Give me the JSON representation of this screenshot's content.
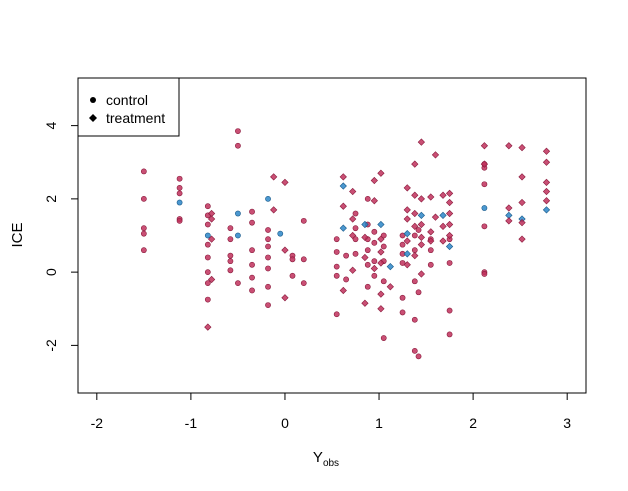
{
  "chart_data": {
    "type": "scatter",
    "title": "",
    "xlabel_main": "Y",
    "xlabel_sub": "obs",
    "ylabel": "ICE",
    "xlim": [
      -2.2,
      3.2
    ],
    "ylim": [
      -3.3,
      5.3
    ],
    "x_ticks": [
      -2,
      -1,
      0,
      1,
      2,
      3
    ],
    "x_tick_labels": [
      "-2",
      "-1",
      "0",
      "1",
      "2",
      "3"
    ],
    "y_ticks": [
      -2,
      0,
      2,
      4
    ],
    "y_tick_labels": [
      "-2",
      "0",
      "2",
      "4"
    ],
    "grid": false,
    "legend_position": "top-left",
    "legend": [
      {
        "label": "control",
        "marker": "circle"
      },
      {
        "label": "treatment",
        "marker": "diamond"
      }
    ],
    "colors": {
      "red": "#c0305c",
      "red_edge": "#8a1a3c",
      "blue": "#2b86c8",
      "blue_edge": "#1a5a8a"
    },
    "series": [
      {
        "name": "control",
        "marker": "circle",
        "points": [
          [
            -1.5,
            2.75,
            "r"
          ],
          [
            -1.5,
            2.0,
            "r"
          ],
          [
            -1.5,
            1.2,
            "r"
          ],
          [
            -1.5,
            1.05,
            "r"
          ],
          [
            -1.5,
            0.6,
            "r"
          ],
          [
            -1.12,
            2.55,
            "r"
          ],
          [
            -1.12,
            2.3,
            "r"
          ],
          [
            -1.12,
            2.15,
            "r"
          ],
          [
            -1.12,
            1.9,
            "b"
          ],
          [
            -1.12,
            1.45,
            "r"
          ],
          [
            -1.12,
            1.4,
            "r"
          ],
          [
            -0.82,
            1.8,
            "r"
          ],
          [
            -0.82,
            1.55,
            "r"
          ],
          [
            -0.82,
            1.3,
            "r"
          ],
          [
            -0.82,
            1.0,
            "b"
          ],
          [
            -0.82,
            0.75,
            "r"
          ],
          [
            -0.82,
            0.4,
            "r"
          ],
          [
            -0.82,
            0.0,
            "r"
          ],
          [
            -0.82,
            -0.3,
            "r"
          ],
          [
            -0.82,
            -0.75,
            "r"
          ],
          [
            -0.58,
            1.2,
            "r"
          ],
          [
            -0.58,
            0.9,
            "r"
          ],
          [
            -0.58,
            0.45,
            "r"
          ],
          [
            -0.58,
            0.3,
            "r"
          ],
          [
            -0.58,
            0.05,
            "r"
          ],
          [
            -0.5,
            3.85,
            "r"
          ],
          [
            -0.5,
            3.45,
            "r"
          ],
          [
            -0.5,
            1.6,
            "b"
          ],
          [
            -0.5,
            1.0,
            "b"
          ],
          [
            -0.5,
            -0.3,
            "r"
          ],
          [
            -0.35,
            1.65,
            "r"
          ],
          [
            -0.35,
            1.35,
            "r"
          ],
          [
            -0.35,
            0.6,
            "r"
          ],
          [
            -0.35,
            0.2,
            "r"
          ],
          [
            -0.35,
            -0.15,
            "r"
          ],
          [
            -0.35,
            -0.5,
            "r"
          ],
          [
            -0.18,
            2.0,
            "b"
          ],
          [
            -0.18,
            1.15,
            "r"
          ],
          [
            -0.18,
            0.9,
            "r"
          ],
          [
            -0.18,
            0.7,
            "r"
          ],
          [
            -0.18,
            0.4,
            "r"
          ],
          [
            -0.18,
            0.1,
            "r"
          ],
          [
            -0.18,
            -0.4,
            "r"
          ],
          [
            -0.18,
            -0.9,
            "r"
          ],
          [
            -0.05,
            1.05,
            "b"
          ],
          [
            0.08,
            0.45,
            "r"
          ],
          [
            0.08,
            0.35,
            "r"
          ],
          [
            0.08,
            -0.1,
            "r"
          ],
          [
            0.2,
            1.4,
            "r"
          ],
          [
            0.2,
            0.35,
            "r"
          ],
          [
            0.2,
            -0.3,
            "r"
          ],
          [
            0.55,
            0.9,
            "r"
          ],
          [
            0.55,
            0.55,
            "r"
          ],
          [
            0.55,
            0.15,
            "r"
          ],
          [
            0.55,
            -0.1,
            "r"
          ],
          [
            0.55,
            -1.15,
            "r"
          ],
          [
            0.65,
            0.45,
            "r"
          ],
          [
            0.65,
            -0.2,
            "r"
          ],
          [
            0.75,
            1.6,
            "r"
          ],
          [
            0.75,
            1.2,
            "r"
          ],
          [
            0.75,
            0.9,
            "r"
          ],
          [
            0.75,
            0.5,
            "r"
          ],
          [
            0.88,
            2.0,
            "r"
          ],
          [
            0.88,
            1.3,
            "r"
          ],
          [
            0.88,
            0.9,
            "r"
          ],
          [
            0.88,
            0.6,
            "r"
          ],
          [
            0.88,
            0.2,
            "r"
          ],
          [
            0.88,
            -0.4,
            "r"
          ],
          [
            0.95,
            1.1,
            "r"
          ],
          [
            0.95,
            0.8,
            "r"
          ],
          [
            0.95,
            0.3,
            "r"
          ],
          [
            0.95,
            -0.1,
            "r"
          ],
          [
            1.05,
            1.0,
            "r"
          ],
          [
            1.05,
            0.7,
            "r"
          ],
          [
            1.05,
            0.3,
            "r"
          ],
          [
            1.05,
            -0.25,
            "r"
          ],
          [
            1.05,
            -1.8,
            "r"
          ],
          [
            1.25,
            1.0,
            "r"
          ],
          [
            1.25,
            0.75,
            "r"
          ],
          [
            1.25,
            0.5,
            "r"
          ],
          [
            1.25,
            0.25,
            "r"
          ],
          [
            1.25,
            -0.7,
            "r"
          ],
          [
            1.25,
            -1.1,
            "r"
          ],
          [
            1.38,
            1.0,
            "r"
          ],
          [
            1.38,
            0.6,
            "r"
          ],
          [
            1.38,
            -0.25,
            "r"
          ],
          [
            1.38,
            -1.3,
            "r"
          ],
          [
            1.38,
            -2.15,
            "r"
          ],
          [
            1.42,
            1.15,
            "r"
          ],
          [
            1.42,
            -0.55,
            "r"
          ],
          [
            1.42,
            -2.3,
            "r"
          ],
          [
            1.55,
            0.9,
            "r"
          ],
          [
            1.55,
            0.6,
            "r"
          ],
          [
            1.55,
            0.2,
            "r"
          ],
          [
            1.75,
            0.9,
            "r"
          ],
          [
            1.75,
            0.25,
            "r"
          ],
          [
            1.75,
            -1.05,
            "r"
          ],
          [
            1.75,
            -1.7,
            "r"
          ],
          [
            2.12,
            2.95,
            "r"
          ],
          [
            2.12,
            2.85,
            "r"
          ],
          [
            2.12,
            2.4,
            "r"
          ],
          [
            2.12,
            1.75,
            "b"
          ],
          [
            2.12,
            1.25,
            "r"
          ],
          [
            2.12,
            0.0,
            "r"
          ],
          [
            2.12,
            -0.05,
            "r"
          ]
        ]
      },
      {
        "name": "treatment",
        "marker": "diamond",
        "points": [
          [
            -0.78,
            1.6,
            "r"
          ],
          [
            -0.78,
            1.45,
            "r"
          ],
          [
            -0.78,
            0.9,
            "r"
          ],
          [
            -0.78,
            -0.2,
            "r"
          ],
          [
            -0.82,
            -1.5,
            "r"
          ],
          [
            -0.12,
            2.6,
            "r"
          ],
          [
            -0.12,
            1.7,
            "r"
          ],
          [
            0.0,
            2.45,
            "r"
          ],
          [
            0.0,
            0.6,
            "r"
          ],
          [
            0.0,
            -0.7,
            "r"
          ],
          [
            0.62,
            2.6,
            "r"
          ],
          [
            0.62,
            2.35,
            "b"
          ],
          [
            0.62,
            1.8,
            "r"
          ],
          [
            0.62,
            1.2,
            "b"
          ],
          [
            0.62,
            -0.5,
            "r"
          ],
          [
            0.72,
            2.2,
            "r"
          ],
          [
            0.72,
            1.45,
            "r"
          ],
          [
            0.72,
            1.0,
            "r"
          ],
          [
            0.72,
            0.05,
            "r"
          ],
          [
            0.85,
            1.3,
            "b"
          ],
          [
            0.85,
            0.95,
            "r"
          ],
          [
            0.85,
            0.4,
            "r"
          ],
          [
            0.85,
            -0.85,
            "r"
          ],
          [
            0.95,
            2.5,
            "r"
          ],
          [
            0.95,
            1.95,
            "r"
          ],
          [
            0.95,
            0.1,
            "r"
          ],
          [
            1.02,
            2.7,
            "r"
          ],
          [
            1.02,
            1.3,
            "b"
          ],
          [
            1.02,
            0.9,
            "r"
          ],
          [
            1.02,
            0.55,
            "r"
          ],
          [
            1.02,
            0.25,
            "r"
          ],
          [
            1.02,
            -0.6,
            "r"
          ],
          [
            1.02,
            -1.0,
            "r"
          ],
          [
            1.12,
            0.15,
            "b"
          ],
          [
            1.12,
            -0.4,
            "r"
          ],
          [
            1.3,
            2.3,
            "r"
          ],
          [
            1.3,
            1.7,
            "r"
          ],
          [
            1.3,
            1.45,
            "r"
          ],
          [
            1.3,
            1.05,
            "b"
          ],
          [
            1.3,
            0.85,
            "r"
          ],
          [
            1.3,
            0.5,
            "b"
          ],
          [
            1.3,
            0.2,
            "r"
          ],
          [
            1.38,
            2.95,
            "r"
          ],
          [
            1.38,
            2.1,
            "r"
          ],
          [
            1.38,
            1.6,
            "r"
          ],
          [
            1.38,
            1.25,
            "r"
          ],
          [
            1.38,
            0.45,
            "r"
          ],
          [
            1.45,
            3.55,
            "r"
          ],
          [
            1.45,
            2.0,
            "r"
          ],
          [
            1.45,
            1.55,
            "b"
          ],
          [
            1.45,
            1.3,
            "r"
          ],
          [
            1.45,
            0.95,
            "r"
          ],
          [
            1.45,
            0.75,
            "r"
          ],
          [
            1.45,
            -0.05,
            "r"
          ],
          [
            1.55,
            2.05,
            "r"
          ],
          [
            1.55,
            1.1,
            "r"
          ],
          [
            1.55,
            0.85,
            "r"
          ],
          [
            1.6,
            3.2,
            "r"
          ],
          [
            1.6,
            1.5,
            "r"
          ],
          [
            1.68,
            2.1,
            "r"
          ],
          [
            1.68,
            1.55,
            "b"
          ],
          [
            1.68,
            1.25,
            "r"
          ],
          [
            1.68,
            0.85,
            "r"
          ],
          [
            1.75,
            2.15,
            "r"
          ],
          [
            1.75,
            1.9,
            "r"
          ],
          [
            1.75,
            1.6,
            "r"
          ],
          [
            1.75,
            1.3,
            "r"
          ],
          [
            1.75,
            1.0,
            "r"
          ],
          [
            1.75,
            0.7,
            "b"
          ],
          [
            2.12,
            3.45,
            "r"
          ],
          [
            2.12,
            2.95,
            "r"
          ],
          [
            2.38,
            3.45,
            "r"
          ],
          [
            2.38,
            1.75,
            "r"
          ],
          [
            2.38,
            1.55,
            "b"
          ],
          [
            2.38,
            1.4,
            "r"
          ],
          [
            2.52,
            3.4,
            "r"
          ],
          [
            2.52,
            2.6,
            "r"
          ],
          [
            2.52,
            1.9,
            "r"
          ],
          [
            2.52,
            1.45,
            "b"
          ],
          [
            2.52,
            1.35,
            "r"
          ],
          [
            2.52,
            0.9,
            "r"
          ],
          [
            2.78,
            3.3,
            "r"
          ],
          [
            2.78,
            3.0,
            "r"
          ],
          [
            2.78,
            2.45,
            "r"
          ],
          [
            2.78,
            2.2,
            "r"
          ],
          [
            2.78,
            1.95,
            "r"
          ],
          [
            2.78,
            1.7,
            "b"
          ]
        ]
      }
    ]
  }
}
